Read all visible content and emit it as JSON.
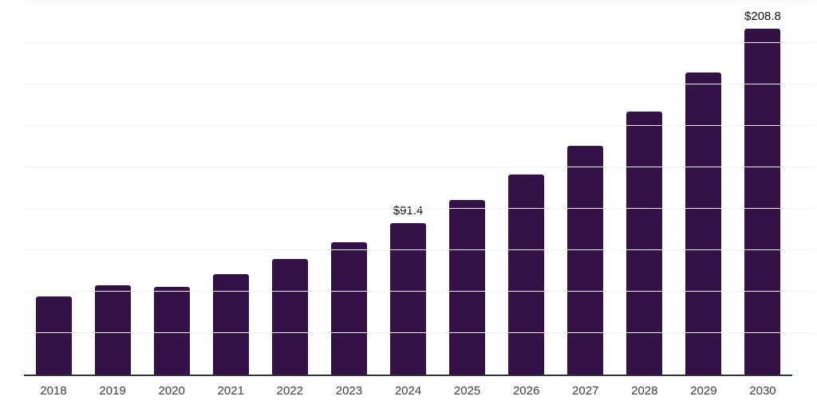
{
  "chart_data": {
    "type": "bar",
    "title": "",
    "xlabel": "",
    "ylabel": "",
    "categories": [
      "2018",
      "2019",
      "2020",
      "2021",
      "2022",
      "2023",
      "2024",
      "2025",
      "2026",
      "2027",
      "2028",
      "2029",
      "2030"
    ],
    "values": [
      47.1,
      54.0,
      52.7,
      60.4,
      69.8,
      79.6,
      91.4,
      105.2,
      120.8,
      138.1,
      158.8,
      182.1,
      208.8
    ],
    "data_labels": {
      "2024": "$91.4",
      "2030": "$208.8"
    },
    "value_prefix": "$",
    "ylim": [
      0,
      226
    ],
    "gridline_step": 25,
    "grid": true,
    "legend": false,
    "colors": {
      "bar": "#351149",
      "axis_line": "#333333",
      "gridline": "#f2f2f2",
      "tick_label": "#3d3d3d",
      "data_label": "#0d0d0d",
      "background": "#ffffff"
    }
  }
}
